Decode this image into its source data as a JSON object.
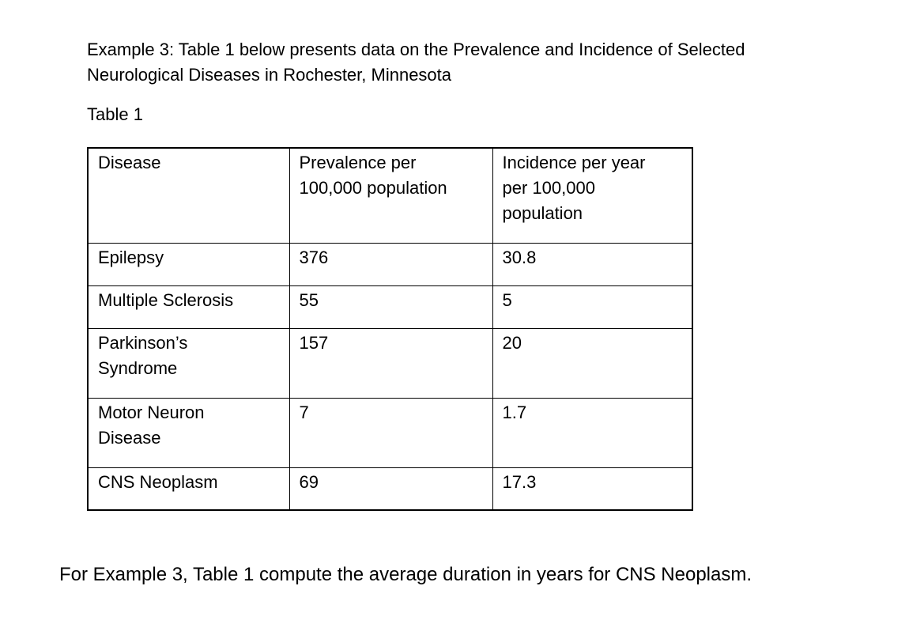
{
  "document": {
    "intro_text": "Example 3: Table 1 below presents data on the Prevalence and Incidence of Selected Neurological Diseases in Rochester, Minnesota",
    "table_label": "Table 1",
    "question_text": "For Example 3, Table 1 compute the average duration in years for CNS Neoplasm."
  },
  "table": {
    "columns": [
      "Disease",
      "Prevalence per 100,000 population",
      "Incidence per year per 100,000 population"
    ],
    "rows": [
      {
        "disease": "Epilepsy",
        "prevalence": "376",
        "incidence": "30.8"
      },
      {
        "disease": "Multiple Sclerosis",
        "prevalence": "55",
        "incidence": "5"
      },
      {
        "disease": "Parkinson’s Syndrome",
        "prevalence": "157",
        "incidence": "20"
      },
      {
        "disease": "Motor Neuron Disease",
        "prevalence": "7",
        "incidence": "1.7"
      },
      {
        "disease": "CNS Neoplasm",
        "prevalence": "69",
        "incidence": "17.3"
      }
    ]
  }
}
